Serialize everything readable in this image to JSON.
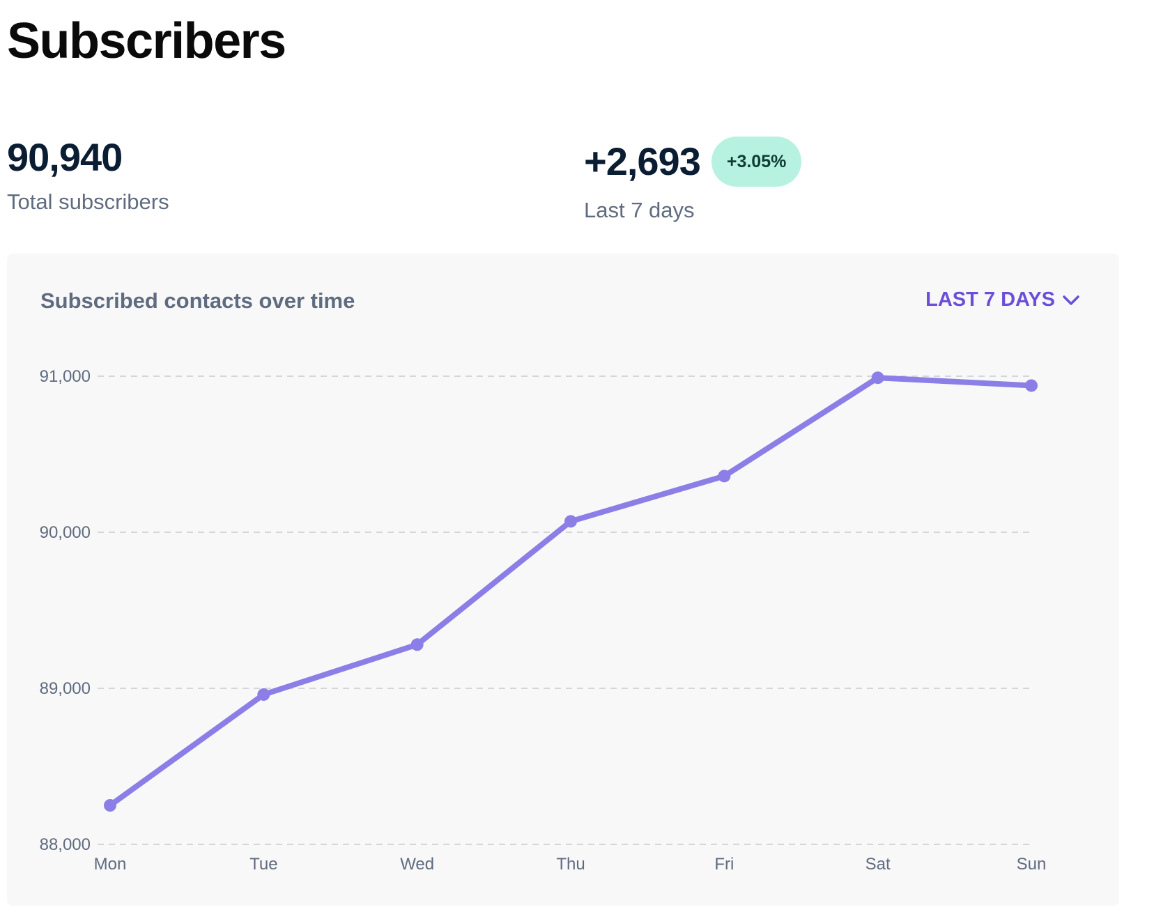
{
  "page": {
    "title": "Subscribers"
  },
  "stats": {
    "total": {
      "value": "90,940",
      "label": "Total subscribers"
    },
    "week": {
      "value": "+2,693",
      "badge": "+3.05%",
      "label": "Last 7 days"
    }
  },
  "colors": {
    "line": "#8b7ee6",
    "accent": "#6b4fd8",
    "badge_bg": "#b7f2e1"
  },
  "chart_card": {
    "title": "Subscribed contacts over time",
    "range_label": "LAST 7 DAYS",
    "range_icon": "chevron-down-icon"
  },
  "chart_data": {
    "type": "line",
    "title": "Subscribed contacts over time",
    "xlabel": "",
    "ylabel": "",
    "categories": [
      "Mon",
      "Tue",
      "Wed",
      "Thu",
      "Fri",
      "Sat",
      "Sun"
    ],
    "series": [
      {
        "name": "Subscribed contacts",
        "values": [
          88250,
          88960,
          89280,
          90070,
          90360,
          90990,
          90940
        ]
      }
    ],
    "ylim": [
      88000,
      91000
    ],
    "yticks": [
      88000,
      89000,
      90000,
      91000
    ],
    "ytick_labels": [
      "88,000",
      "89,000",
      "90,000",
      "91,000"
    ],
    "grid": true,
    "legend": "none"
  }
}
